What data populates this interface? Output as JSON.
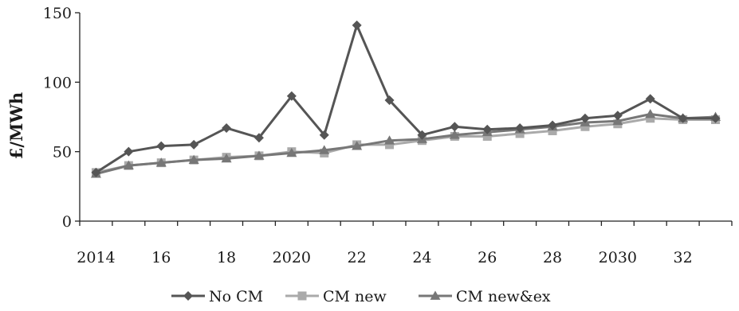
{
  "chart_data": {
    "type": "line",
    "title": "",
    "xlabel": "",
    "ylabel": "£/MWh",
    "ylim": [
      0,
      150
    ],
    "yticks": [
      0,
      50,
      100,
      150
    ],
    "x": [
      2014,
      2015,
      2016,
      2017,
      2018,
      2019,
      2020,
      2021,
      2022,
      2023,
      2024,
      2025,
      2026,
      2027,
      2028,
      2029,
      2030,
      2031,
      2032,
      2033
    ],
    "xtick_labels": [
      "2014",
      "",
      "16",
      "",
      "18",
      "",
      "2020",
      "",
      "22",
      "",
      "24",
      "",
      "26",
      "",
      "28",
      "",
      "2030",
      "",
      "32",
      ""
    ],
    "grid": false,
    "legend_position": "bottom",
    "series": [
      {
        "name": "No CM",
        "color": "#555555",
        "marker": "diamond",
        "values": [
          35,
          50,
          54,
          55,
          67,
          60,
          90,
          62,
          141,
          87,
          62,
          68,
          66,
          67,
          69,
          74,
          76,
          88,
          74,
          74
        ]
      },
      {
        "name": "CM new",
        "color": "#aaaaaa",
        "marker": "square",
        "values": [
          35,
          40,
          42,
          44,
          46,
          47,
          50,
          49,
          55,
          55,
          58,
          61,
          61,
          63,
          65,
          68,
          70,
          74,
          73,
          73
        ]
      },
      {
        "name": "CM new&ex",
        "color": "#777777",
        "marker": "triangle",
        "values": [
          34,
          40,
          42,
          44,
          45,
          47,
          49,
          51,
          54,
          58,
          59,
          62,
          64,
          66,
          68,
          71,
          72,
          77,
          74,
          75
        ]
      }
    ]
  }
}
